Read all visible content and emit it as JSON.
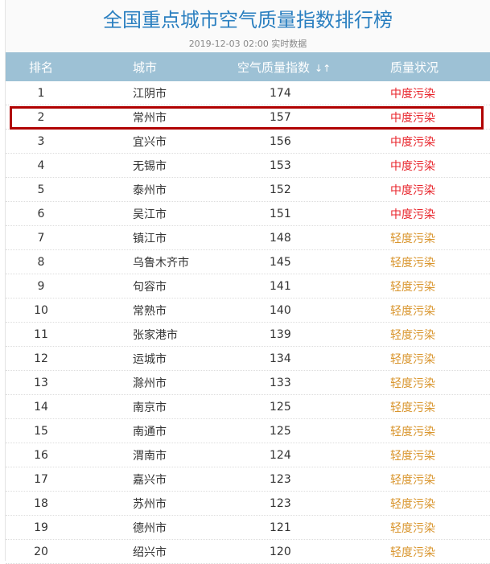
{
  "title": "全国重点城市空气质量指数排行榜",
  "date": "2019-12-03 02:00 实时数据",
  "header": {
    "rank": "排名",
    "city": "城市",
    "aqi": "空气质量指数",
    "sort_icons": "↓↑",
    "status": "质量状况"
  },
  "colors": {
    "header_bg": "#9dc1d5",
    "moderate": "#e8242b",
    "light": "#d9952d",
    "highlight": "#b00000"
  },
  "highlighted_rank": 2,
  "rows": [
    {
      "rank": "1",
      "city": "江阴市",
      "aqi": "174",
      "status": "中度污染",
      "level": "moderate"
    },
    {
      "rank": "2",
      "city": "常州市",
      "aqi": "157",
      "status": "中度污染",
      "level": "moderate"
    },
    {
      "rank": "3",
      "city": "宜兴市",
      "aqi": "156",
      "status": "中度污染",
      "level": "moderate"
    },
    {
      "rank": "4",
      "city": "无锡市",
      "aqi": "153",
      "status": "中度污染",
      "level": "moderate"
    },
    {
      "rank": "5",
      "city": "泰州市",
      "aqi": "152",
      "status": "中度污染",
      "level": "moderate"
    },
    {
      "rank": "6",
      "city": "吴江市",
      "aqi": "151",
      "status": "中度污染",
      "level": "moderate"
    },
    {
      "rank": "7",
      "city": "镇江市",
      "aqi": "148",
      "status": "轻度污染",
      "level": "light"
    },
    {
      "rank": "8",
      "city": "乌鲁木齐市",
      "aqi": "145",
      "status": "轻度污染",
      "level": "light"
    },
    {
      "rank": "9",
      "city": "句容市",
      "aqi": "141",
      "status": "轻度污染",
      "level": "light"
    },
    {
      "rank": "10",
      "city": "常熟市",
      "aqi": "140",
      "status": "轻度污染",
      "level": "light"
    },
    {
      "rank": "11",
      "city": "张家港市",
      "aqi": "139",
      "status": "轻度污染",
      "level": "light"
    },
    {
      "rank": "12",
      "city": "运城市",
      "aqi": "134",
      "status": "轻度污染",
      "level": "light"
    },
    {
      "rank": "13",
      "city": "滁州市",
      "aqi": "133",
      "status": "轻度污染",
      "level": "light"
    },
    {
      "rank": "14",
      "city": "南京市",
      "aqi": "125",
      "status": "轻度污染",
      "level": "light"
    },
    {
      "rank": "15",
      "city": "南通市",
      "aqi": "125",
      "status": "轻度污染",
      "level": "light"
    },
    {
      "rank": "16",
      "city": "渭南市",
      "aqi": "124",
      "status": "轻度污染",
      "level": "light"
    },
    {
      "rank": "17",
      "city": "嘉兴市",
      "aqi": "123",
      "status": "轻度污染",
      "level": "light"
    },
    {
      "rank": "18",
      "city": "苏州市",
      "aqi": "123",
      "status": "轻度污染",
      "level": "light"
    },
    {
      "rank": "19",
      "city": "德州市",
      "aqi": "121",
      "status": "轻度污染",
      "level": "light"
    },
    {
      "rank": "20",
      "city": "绍兴市",
      "aqi": "120",
      "status": "轻度污染",
      "level": "light"
    }
  ]
}
